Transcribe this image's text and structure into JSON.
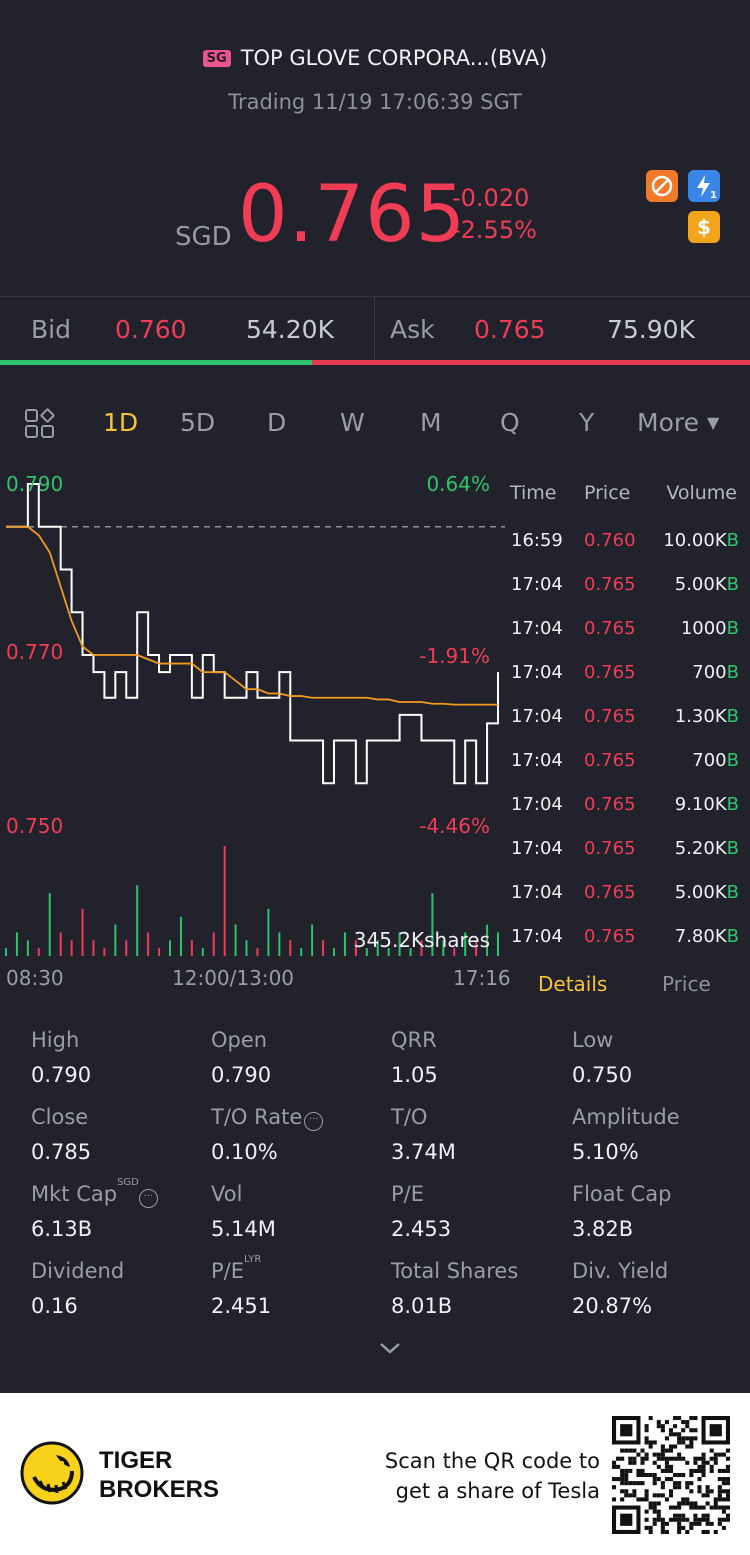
{
  "header": {
    "market_badge": "SG",
    "title": "TOP GLOVE CORPORA...(BVA)",
    "status": "Trading 11/19 17:06:39 SGT"
  },
  "quote": {
    "currency": "SGD",
    "price": "0.765",
    "change": "-0.020",
    "change_pct": "-2.55%",
    "icons": [
      "no-short-sell-icon",
      "flash-icon",
      "dollar-icon"
    ]
  },
  "bid_ask": {
    "bid_label": "Bid",
    "bid_price": "0.760",
    "bid_qty": "54.20K",
    "ask_label": "Ask",
    "ask_price": "0.765",
    "ask_qty": "75.90K",
    "bid_ratio": 0.416
  },
  "period_tabs": {
    "items": [
      "1D",
      "5D",
      "D",
      "W",
      "M",
      "Q",
      "Y"
    ],
    "active": "1D",
    "more_label": "More"
  },
  "chart_labels": {
    "y_top": "0.790",
    "y_mid": "0.770",
    "y_bot": "0.750",
    "pct_top": "0.64%",
    "pct_mid": "-1.91%",
    "pct_bot": "-4.46%",
    "x_start": "08:30",
    "x_mid": "12:00/13:00",
    "x_end": "17:16",
    "volume_label": "345.2Kshares"
  },
  "chart_data": {
    "type": "line",
    "xlabel": "",
    "ylabel": "",
    "ylim": [
      0.75,
      0.79
    ],
    "prev_close": 0.785,
    "series": [
      {
        "values": [
          0.785,
          0.785,
          0.79,
          0.785,
          0.785,
          0.78,
          0.775,
          0.77,
          0.768,
          0.765,
          0.768,
          0.765,
          0.775,
          0.77,
          0.768,
          0.77,
          0.77,
          0.765,
          0.77,
          0.768,
          0.765,
          0.765,
          0.768,
          0.765,
          0.765,
          0.768,
          0.76,
          0.76,
          0.76,
          0.755,
          0.76,
          0.76,
          0.755,
          0.76,
          0.76,
          0.76,
          0.763,
          0.763,
          0.76,
          0.76,
          0.76,
          0.755,
          0.76,
          0.755,
          0.762,
          0.768
        ]
      },
      {
        "values": [
          0.785,
          0.785,
          0.785,
          0.784,
          0.782,
          0.778,
          0.774,
          0.771,
          0.77,
          0.77,
          0.77,
          0.77,
          0.77,
          0.7695,
          0.769,
          0.769,
          0.769,
          0.769,
          0.768,
          0.768,
          0.768,
          0.767,
          0.766,
          0.766,
          0.7655,
          0.7655,
          0.7652,
          0.7652,
          0.765,
          0.765,
          0.765,
          0.765,
          0.765,
          0.765,
          0.7648,
          0.7648,
          0.7645,
          0.7645,
          0.7645,
          0.7643,
          0.7643,
          0.7642,
          0.7642,
          0.7642,
          0.7642,
          0.7642
        ]
      }
    ],
    "volume": [
      1,
      3,
      2,
      1,
      8,
      3,
      2,
      6,
      2,
      1,
      4,
      2,
      9,
      3,
      1,
      2,
      5,
      2,
      1,
      3,
      14,
      4,
      2,
      1,
      6,
      3,
      2,
      1,
      4,
      2,
      1,
      3,
      2,
      1,
      2,
      1,
      3,
      1,
      2,
      8,
      2,
      1,
      3,
      2,
      4,
      3
    ]
  },
  "ticks": {
    "headers": [
      "Time",
      "Price",
      "Volume"
    ],
    "rows": [
      {
        "time": "16:59",
        "price": "0.760",
        "volume": "10.00K",
        "side": "B"
      },
      {
        "time": "17:04",
        "price": "0.765",
        "volume": "5.00K",
        "side": "B"
      },
      {
        "time": "17:04",
        "price": "0.765",
        "volume": "1000",
        "side": "B"
      },
      {
        "time": "17:04",
        "price": "0.765",
        "volume": "700",
        "side": "B"
      },
      {
        "time": "17:04",
        "price": "0.765",
        "volume": "1.30K",
        "side": "B"
      },
      {
        "time": "17:04",
        "price": "0.765",
        "volume": "700",
        "side": "B"
      },
      {
        "time": "17:04",
        "price": "0.765",
        "volume": "9.10K",
        "side": "B"
      },
      {
        "time": "17:04",
        "price": "0.765",
        "volume": "5.20K",
        "side": "B"
      },
      {
        "time": "17:04",
        "price": "0.765",
        "volume": "5.00K",
        "side": "B"
      },
      {
        "time": "17:04",
        "price": "0.765",
        "volume": "7.80K",
        "side": "B"
      }
    ],
    "tab_details": "Details",
    "tab_price": "Price"
  },
  "stats": [
    {
      "label": "High",
      "value": "0.790"
    },
    {
      "label": "Open",
      "value": "0.790"
    },
    {
      "label": "QRR",
      "value": "1.05"
    },
    {
      "label": "Low",
      "value": "0.750"
    },
    {
      "label": "Close",
      "value": "0.785"
    },
    {
      "label": "T/O Rate",
      "value": "0.10%"
    },
    {
      "label": "T/O",
      "value": "3.74M"
    },
    {
      "label": "Amplitude",
      "value": "5.10%"
    },
    {
      "label": "Mkt Cap",
      "value": "6.13B",
      "sup": "SGD"
    },
    {
      "label": "Vol",
      "value": "5.14M"
    },
    {
      "label": "P/E",
      "value": "2.453"
    },
    {
      "label": "Float Cap",
      "value": "3.82B"
    },
    {
      "label": "Dividend",
      "value": "0.16"
    },
    {
      "label": "P/E",
      "value": "2.451",
      "sup": "LYR"
    },
    {
      "label": "Total Shares",
      "value": "8.01B"
    },
    {
      "label": "Div. Yield",
      "value": "20.87%"
    }
  ],
  "footer": {
    "brand_line1": "TIGER",
    "brand_line2": "BROKERS",
    "promo_line1": "Scan the QR code to",
    "promo_line2": "get a share of Tesla"
  },
  "colors": {
    "background": "#21222c",
    "down": "#f03d55",
    "up": "#2fc36a",
    "accent": "#f5c430",
    "avg_line": "#f29a1f"
  }
}
